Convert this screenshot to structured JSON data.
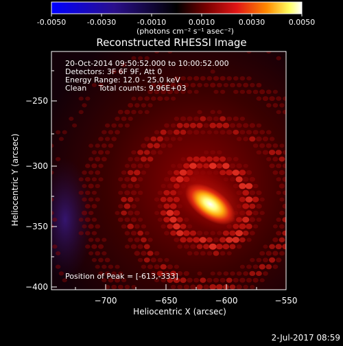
{
  "colorbar": {
    "ticks": [
      "-0.0050",
      "-0.0030",
      "-0.0010",
      "0.0010",
      "0.0030",
      "0.0050"
    ],
    "unit_label": "(photons cm⁻² s⁻¹ asec⁻²)",
    "stops": [
      "#0000ff",
      "#2a0f8c",
      "#000000",
      "#7a0000",
      "#e01515",
      "#ff8a00",
      "#ffff60",
      "#ffffff"
    ]
  },
  "header": {
    "title": "Reconstructed RHESSI Image"
  },
  "annotations": {
    "line1": "20-Oct-2014 09:50:52.000 to 10:00:52.000",
    "line2": "Detectors: 3F 6F 9F, Att 0",
    "line3": "Energy Range: 12.0 - 25.0 keV",
    "line4": "Clean     Total counts: 9.96E+03",
    "peak": "Position of Peak = [-613,-333]"
  },
  "footer": {
    "timestamp": "2-Jul-2017 08:59"
  },
  "chart_data": {
    "type": "heatmap",
    "title": "Reconstructed RHESSI Image",
    "xlabel": "Heliocentric X (arcsec)",
    "ylabel": "Heliocentric Y (arcsec)",
    "xlim": [
      -745,
      -550
    ],
    "ylim": [
      -403,
      -208
    ],
    "xticks": [
      -700,
      -650,
      -600,
      -550
    ],
    "yticks": [
      -250,
      -300,
      -350,
      -400
    ],
    "xtick_labels": [
      "−700",
      "−650",
      "−600",
      "−550"
    ],
    "ytick_labels": [
      "−250",
      "−300",
      "−350",
      "−400"
    ],
    "colorbar_range": [
      -0.005,
      0.005
    ],
    "peak": {
      "x": -613,
      "y": -333
    },
    "source_orientation_deg": 35
  }
}
